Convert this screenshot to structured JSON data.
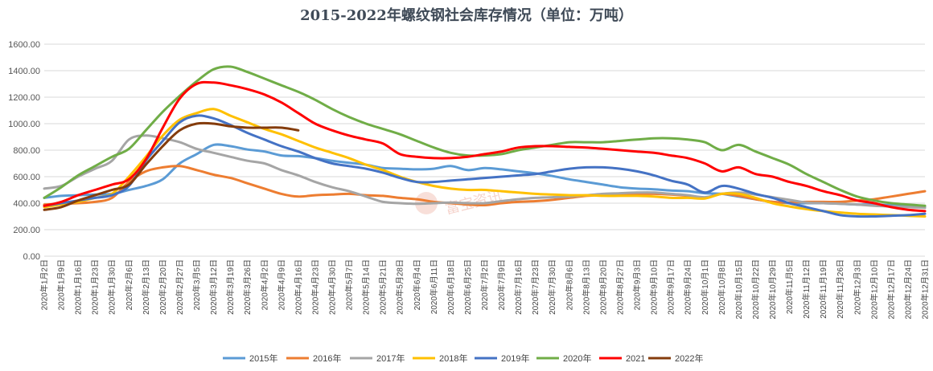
{
  "chart_data": {
    "type": "line",
    "title": "2015-2022年螺纹钢社会库存情况（单位：万吨）",
    "ylim": [
      0,
      1600
    ],
    "yticks": [
      "0.00",
      "200.00",
      "400.00",
      "600.00",
      "800.00",
      "1000.00",
      "1200.00",
      "1400.00",
      "1600.00"
    ],
    "ytick_values": [
      0,
      200,
      400,
      600,
      800,
      1000,
      1200,
      1400,
      1600
    ],
    "grid": true,
    "legend_position": "bottom",
    "categories": [
      "2020年1月2日",
      "2020年1月9日",
      "2020年1月16日",
      "2020年1月23日",
      "2020年1月30日",
      "2020年2月6日",
      "2020年2月13日",
      "2020年2月20日",
      "2020年2月27日",
      "2020年3月5日",
      "2020年3月12日",
      "2020年3月19日",
      "2020年3月26日",
      "2020年4月2日",
      "2020年4月9日",
      "2020年4月16日",
      "2020年4月23日",
      "2020年4月30日",
      "2020年5月7日",
      "2020年5月14日",
      "2020年5月21日",
      "2020年5月28日",
      "2020年6月4日",
      "2020年6月11日",
      "2020年6月18日",
      "2020年6月25日",
      "2020年7月2日",
      "2020年7月9日",
      "2020年7月16日",
      "2020年7月23日",
      "2020年7月30日",
      "2020年8月6日",
      "2020年8月13日",
      "2020年8月20日",
      "2020年8月27日",
      "2020年9月3日",
      "2020年9月10日",
      "2020年9月17日",
      "2020年9月24日",
      "2020年10月1日",
      "2020年10月8日",
      "2020年10月15日",
      "2020年10月22日",
      "2020年10月29日",
      "2020年11月5日",
      "2020年11月12日",
      "2020年11月19日",
      "2020年11月26日",
      "2020年12月3日",
      "2020年12月10日",
      "2020年12月17日",
      "2020年12月24日",
      "2020年12月31日"
    ],
    "series": [
      {
        "name": "2015年",
        "color": "#5b9bd5",
        "values": [
          440,
          455,
          460,
          465,
          470,
          500,
          530,
          580,
          700,
          770,
          840,
          830,
          805,
          790,
          760,
          755,
          740,
          720,
          705,
          690,
          665,
          660,
          655,
          660,
          680,
          650,
          665,
          655,
          640,
          625,
          605,
          580,
          560,
          540,
          520,
          510,
          505,
          495,
          490,
          475,
          470,
          450,
          430,
          410,
          400,
          400,
          400,
          395,
          390,
          390,
          385,
          380,
          375
        ]
      },
      {
        "name": "2016年",
        "color": "#ed7d31",
        "values": [
          390,
          395,
          400,
          410,
          440,
          560,
          640,
          670,
          680,
          650,
          615,
          590,
          550,
          510,
          470,
          450,
          460,
          465,
          470,
          460,
          455,
          440,
          430,
          410,
          400,
          390,
          385,
          400,
          410,
          415,
          425,
          440,
          455,
          460,
          465,
          470,
          470,
          465,
          455,
          440,
          470,
          455,
          430,
          410,
          405,
          410,
          410,
          410,
          420,
          430,
          450,
          470,
          490
        ]
      },
      {
        "name": "2017年",
        "color": "#a5a5a5",
        "values": [
          510,
          530,
          600,
          660,
          720,
          880,
          910,
          890,
          860,
          810,
          780,
          750,
          720,
          700,
          650,
          610,
          560,
          520,
          490,
          450,
          410,
          400,
          395,
          400,
          405,
          400,
          400,
          415,
          430,
          440,
          445,
          450,
          460,
          470,
          475,
          480,
          480,
          470,
          460,
          445,
          470,
          480,
          465,
          445,
          425,
          405,
          400,
          395,
          390,
          380,
          375,
          370,
          365
        ]
      },
      {
        "name": "2018年",
        "color": "#ffc000",
        "values": [
          370,
          390,
          410,
          440,
          470,
          600,
          750,
          910,
          1030,
          1080,
          1110,
          1060,
          1010,
          960,
          920,
          870,
          820,
          780,
          740,
          690,
          650,
          600,
          560,
          530,
          510,
          500,
          500,
          490,
          480,
          470,
          465,
          460,
          460,
          455,
          455,
          455,
          450,
          440,
          440,
          435,
          470,
          470,
          440,
          400,
          375,
          355,
          340,
          330,
          320,
          315,
          310,
          305,
          300
        ]
      },
      {
        "name": "2019年",
        "color": "#4472c4",
        "values": [
          380,
          400,
          420,
          440,
          460,
          530,
          720,
          870,
          1010,
          1060,
          1040,
          990,
          930,
          880,
          830,
          790,
          740,
          700,
          680,
          660,
          630,
          590,
          560,
          560,
          570,
          580,
          590,
          600,
          610,
          620,
          640,
          660,
          670,
          670,
          660,
          640,
          610,
          570,
          540,
          480,
          530,
          510,
          470,
          440,
          400,
          370,
          340,
          310,
          300,
          300,
          305,
          310,
          320
        ]
      },
      {
        "name": "2020年",
        "color": "#70ad47",
        "values": [
          440,
          520,
          610,
          680,
          750,
          810,
          950,
          1090,
          1210,
          1320,
          1410,
          1430,
          1390,
          1340,
          1290,
          1240,
          1180,
          1110,
          1050,
          1000,
          960,
          920,
          870,
          820,
          780,
          760,
          760,
          770,
          800,
          820,
          840,
          860,
          860,
          860,
          870,
          880,
          890,
          890,
          880,
          860,
          800,
          840,
          790,
          740,
          690,
          620,
          560,
          500,
          450,
          420,
          400,
          390,
          380
        ]
      },
      {
        "name": "2021",
        "color": "#ff0000",
        "values": [
          380,
          410,
          460,
          500,
          540,
          580,
          730,
          970,
          1190,
          1300,
          1310,
          1290,
          1260,
          1220,
          1160,
          1080,
          1000,
          950,
          910,
          880,
          850,
          770,
          750,
          740,
          740,
          750,
          770,
          790,
          820,
          830,
          830,
          825,
          820,
          810,
          800,
          790,
          780,
          760,
          740,
          700,
          640,
          670,
          620,
          600,
          560,
          530,
          490,
          460,
          420,
          400,
          370,
          350,
          340
        ]
      },
      {
        "name": "2022年",
        "color": "#843c0c",
        "values": [
          350,
          370,
          420,
          460,
          500,
          540,
          690,
          830,
          950,
          1000,
          1000,
          980,
          970,
          970,
          970,
          950,
          null,
          null,
          null,
          null,
          null,
          null,
          null,
          null,
          null,
          null,
          null,
          null,
          null,
          null,
          null,
          null,
          null,
          null,
          null,
          null,
          null,
          null,
          null,
          null,
          null,
          null,
          null,
          null,
          null,
          null,
          null,
          null,
          null,
          null,
          null,
          null,
          null
        ]
      }
    ],
    "watermark": "富宝资讯"
  }
}
